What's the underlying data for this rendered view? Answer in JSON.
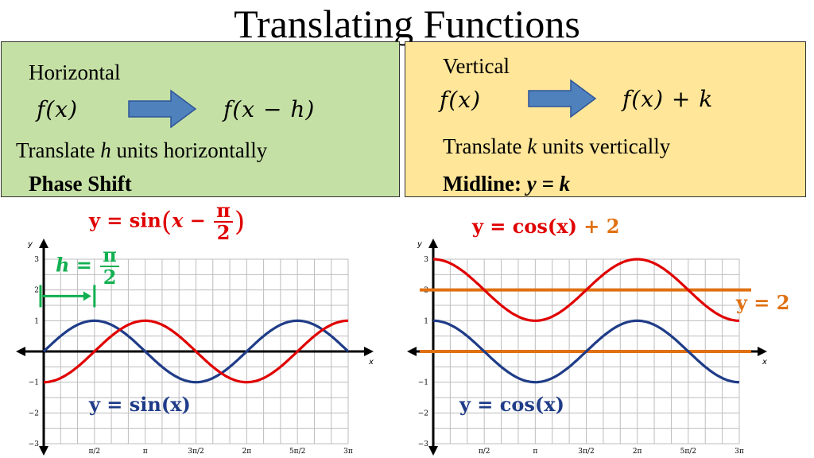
{
  "title": "Translating Functions",
  "horizontal": {
    "label": "Horizontal",
    "from": "f(x)",
    "to": "f(x − h)",
    "desc_pre": "Translate ",
    "desc_var": "h",
    "desc_post": " units horizontally",
    "bold": "Phase Shift"
  },
  "vertical": {
    "label": "Vertical",
    "from": "f(x)",
    "to": "f(x) + k",
    "desc_pre": "Translate ",
    "desc_var": "k",
    "desc_post": " units vertically",
    "bold_pre": "Midline: ",
    "bold_var": "y = k"
  },
  "left_graph": {
    "eq_red_pre": "y = sin",
    "eq_red_x": "x − ",
    "eq_red_num": "π",
    "eq_red_den": "2",
    "eq_blue": "y = sin(x)",
    "h_label": "h = ",
    "h_num": "π",
    "h_den": "2"
  },
  "right_graph": {
    "eq_red_pre": "y = cos(x)",
    "eq_red_post": " + 2",
    "eq_blue": "y = cos(x)",
    "midline_label": "y = 2"
  },
  "colors": {
    "red": "#e00000",
    "blue": "#1f3c88",
    "green": "#10b050",
    "orange": "#e07010"
  },
  "chart_data": [
    {
      "type": "line",
      "xlabel": "x",
      "ylabel": "y",
      "xlim": [
        0,
        9.4248
      ],
      "ylim": [
        -3,
        3
      ],
      "x_ticks": [
        1.5708,
        3.1416,
        4.7124,
        6.2832,
        7.854,
        9.4248
      ],
      "x_tick_labels": [
        "π/2",
        "π",
        "3π/2",
        "2π",
        "5π/2",
        "3π"
      ],
      "y_ticks": [
        -3,
        -2,
        -1,
        1,
        2,
        3
      ],
      "y_tick_labels": [
        "−3",
        "−2",
        "−1",
        "1",
        "2",
        "3"
      ],
      "grid": true,
      "series": [
        {
          "name": "y = sin(x)",
          "fn": "sin(x)",
          "color": "#1f3c88"
        },
        {
          "name": "y = sin(x − π/2)",
          "fn": "sin(x - pi/2)",
          "color": "#e00000"
        }
      ],
      "annotations": [
        {
          "text": "h = π/2",
          "x0": 0,
          "x1": 1.5708,
          "y": 1.8
        }
      ]
    },
    {
      "type": "line",
      "xlabel": "x",
      "ylabel": "y",
      "xlim": [
        0,
        9.4248
      ],
      "ylim": [
        -3,
        3
      ],
      "x_ticks": [
        1.5708,
        3.1416,
        4.7124,
        6.2832,
        7.854,
        9.4248
      ],
      "x_tick_labels": [
        "π/2",
        "π",
        "3π/2",
        "2π",
        "5π/2",
        "3π"
      ],
      "y_ticks": [
        -3,
        -2,
        -1,
        1,
        2,
        3
      ],
      "y_tick_labels": [
        "−3",
        "−2",
        "−1",
        "1",
        "2",
        "3"
      ],
      "grid": true,
      "series": [
        {
          "name": "y = cos(x)",
          "fn": "cos(x)",
          "color": "#1f3c88"
        },
        {
          "name": "y = cos(x) + 2",
          "fn": "cos(x) + 2",
          "color": "#e00000"
        }
      ],
      "horizontal_lines": [
        {
          "name": "y = 2",
          "y": 2,
          "color": "#e07010"
        },
        {
          "name": "y = 0",
          "y": 0,
          "color": "#e07010"
        }
      ]
    }
  ]
}
